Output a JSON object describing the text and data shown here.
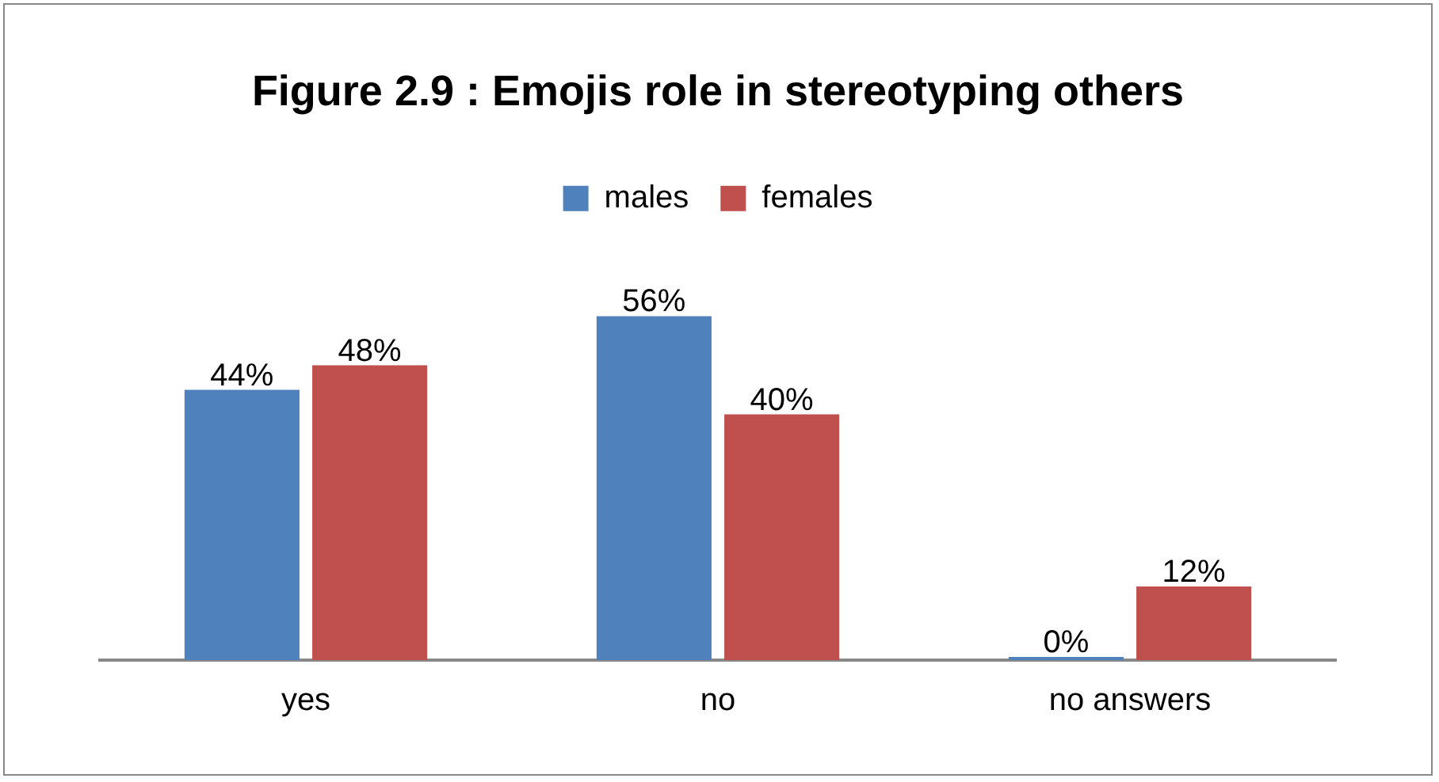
{
  "chart_data": {
    "type": "bar",
    "title": "Figure 2.9 : Emojis role in stereotyping others",
    "categories": [
      "yes",
      "no",
      "no answers"
    ],
    "series": [
      {
        "name": "males",
        "color": "#4f81bd",
        "values": [
          44,
          56,
          0
        ],
        "value_labels": [
          "44%",
          "56%",
          "0%"
        ]
      },
      {
        "name": "females",
        "color": "#c0504d",
        "values": [
          48,
          40,
          12
        ],
        "value_labels": [
          "48%",
          "40%",
          "12%"
        ]
      }
    ],
    "legend": "top"
  }
}
